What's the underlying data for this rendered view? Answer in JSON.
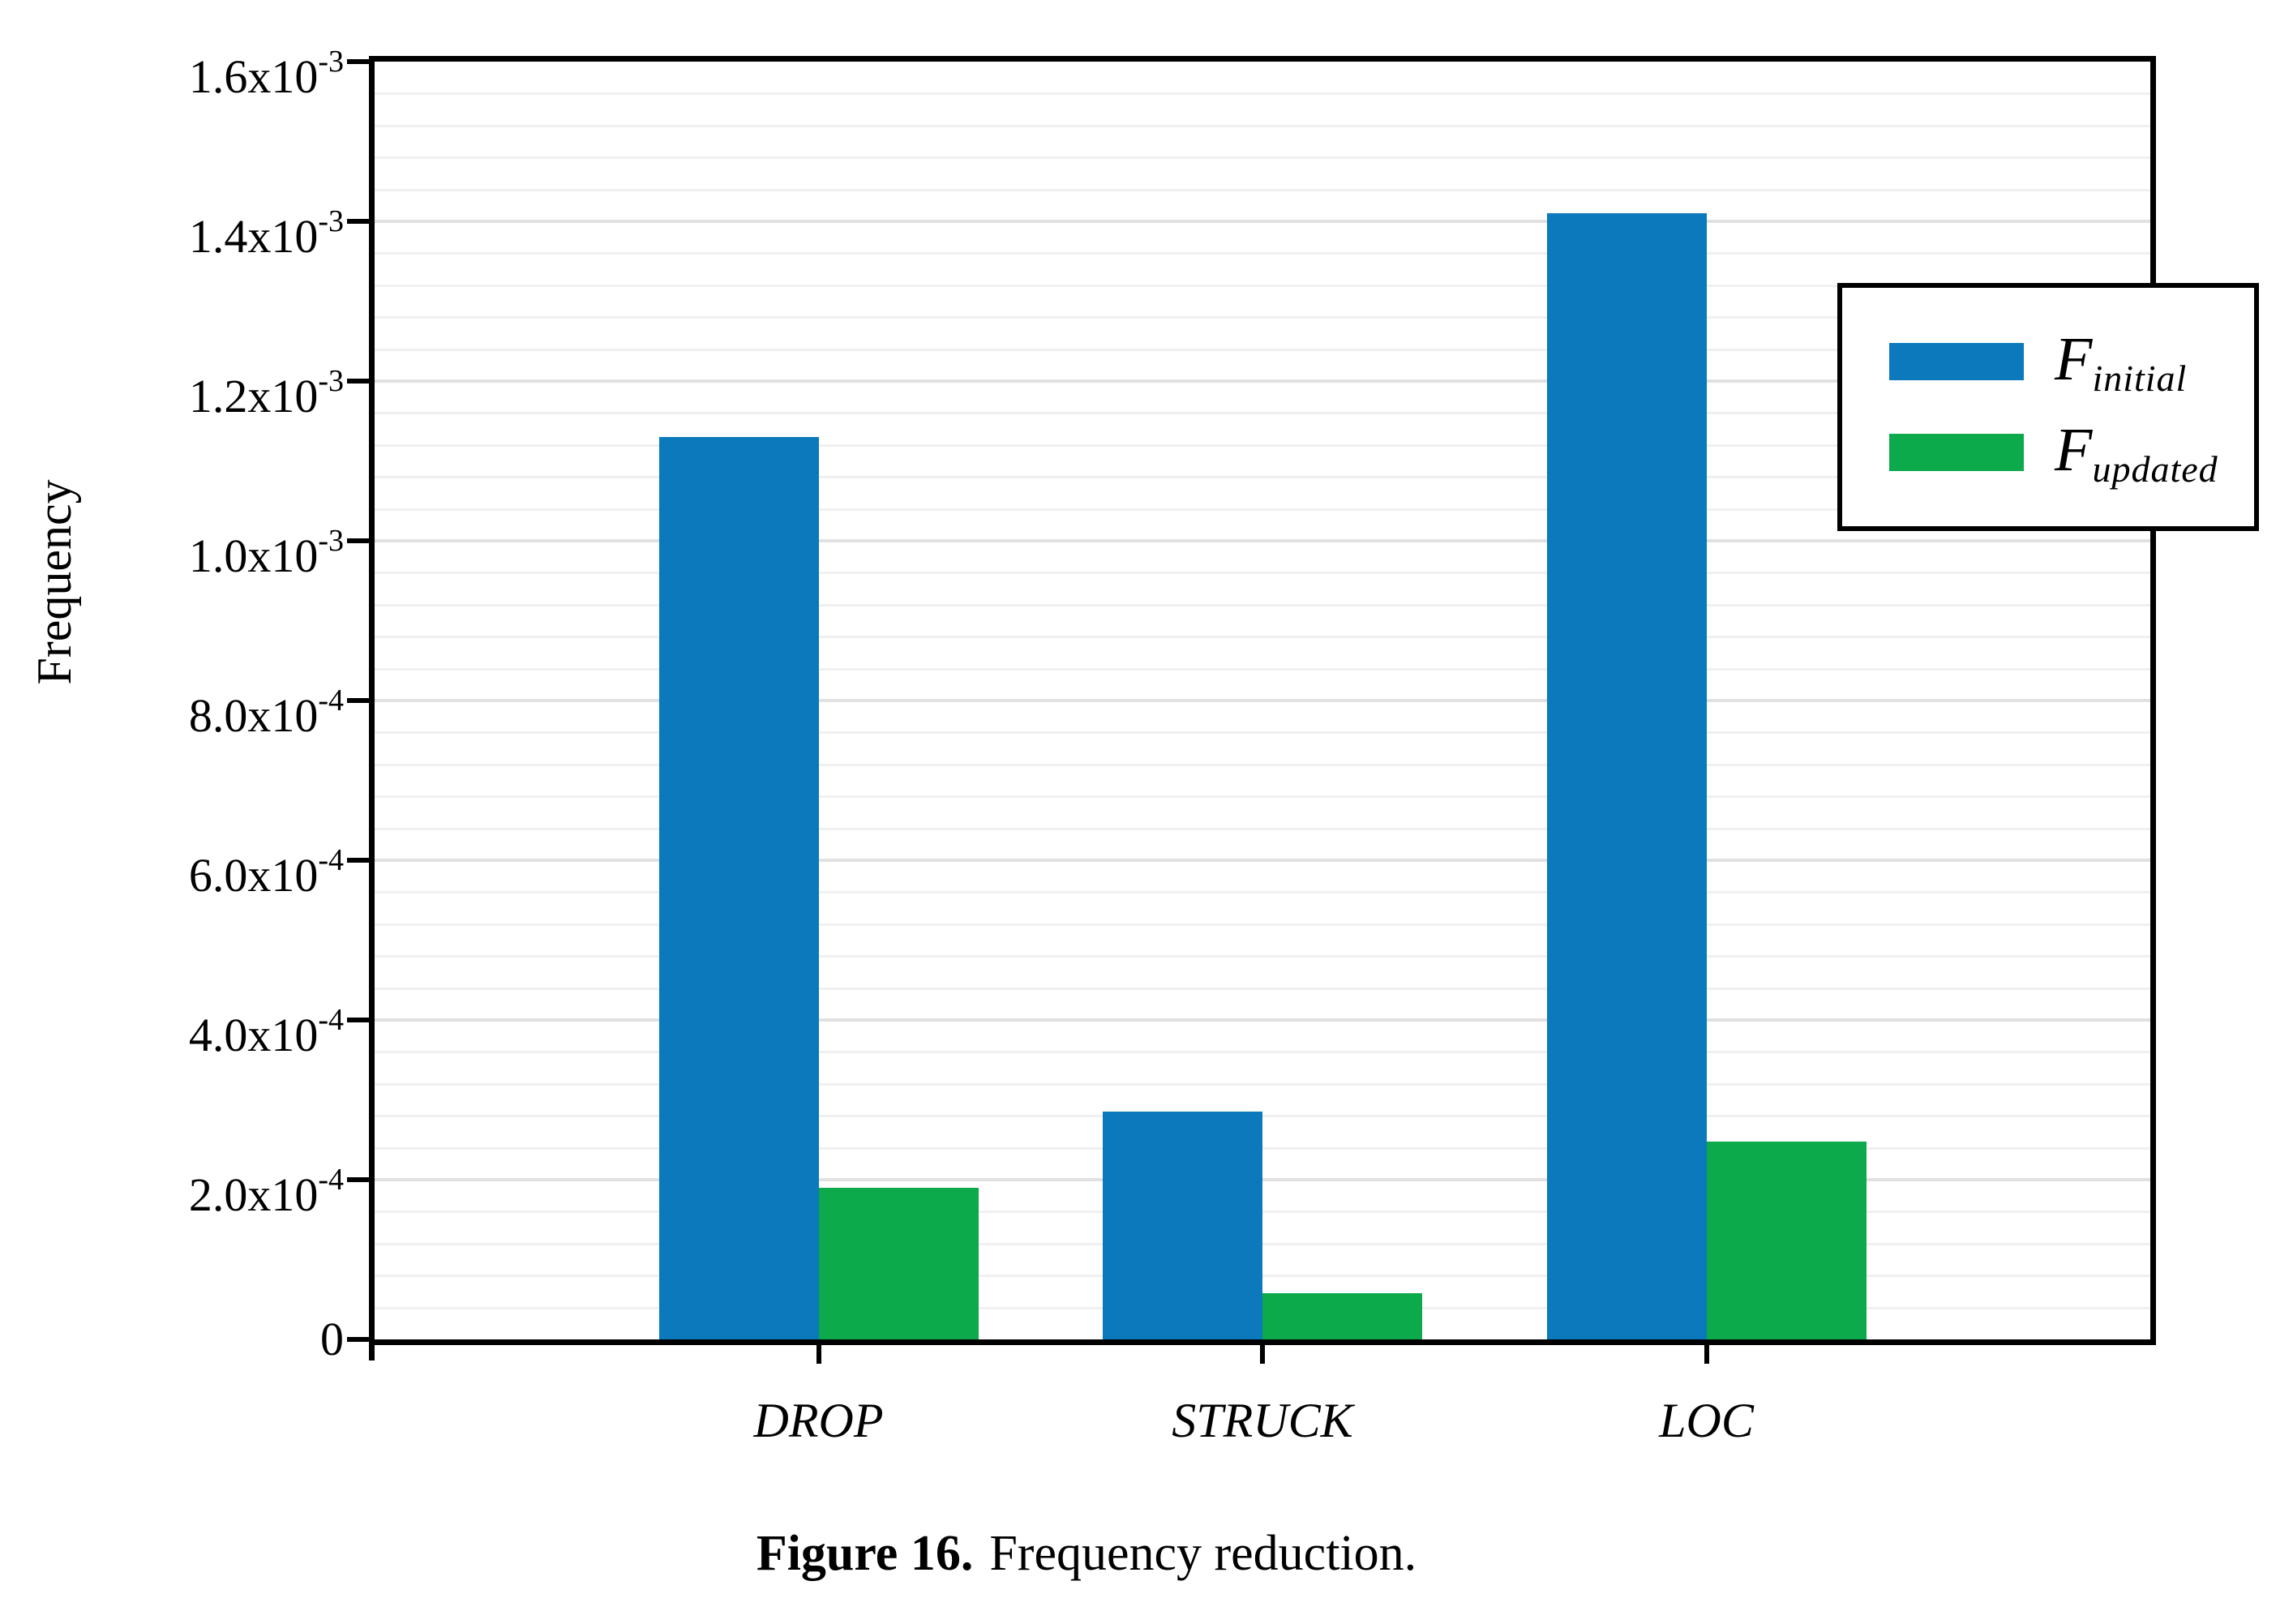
{
  "figure": {
    "caption_bold": "Figure 16.",
    "caption_rest": "Frequency reduction."
  },
  "chart_data": {
    "type": "bar",
    "title": "",
    "xlabel": "",
    "ylabel": "Frequency",
    "categories": [
      "DROP",
      "STRUCK",
      "LOC"
    ],
    "series": [
      {
        "name": "F_initial",
        "label_main": "F",
        "label_sub": "initial",
        "color": "#0b79bb",
        "values": [
          0.00113,
          0.000285,
          0.00141
        ]
      },
      {
        "name": "F_updated",
        "label_main": "F",
        "label_sub": "updated",
        "color": "#0caa4a",
        "values": [
          0.00019,
          5.8e-05,
          0.000248
        ]
      }
    ],
    "ylim": [
      0,
      0.0016
    ],
    "y_major_step": 0.0002,
    "y_minor_step": 4e-05,
    "y_ticks": [
      {
        "value": 0,
        "base": "0",
        "sup": ""
      },
      {
        "value": 0.0002,
        "base": "2.0x10",
        "sup": "-4"
      },
      {
        "value": 0.0004,
        "base": "4.0x10",
        "sup": "-4"
      },
      {
        "value": 0.0006,
        "base": "6.0x10",
        "sup": "-4"
      },
      {
        "value": 0.0008,
        "base": "8.0x10",
        "sup": "-4"
      },
      {
        "value": 0.001,
        "base": "1.0x10",
        "sup": "-3"
      },
      {
        "value": 0.0012,
        "base": "1.2x10",
        "sup": "-3"
      },
      {
        "value": 0.0014,
        "base": "1.4x10",
        "sup": "-3"
      },
      {
        "value": 0.0016,
        "base": "1.6x10",
        "sup": "-3"
      }
    ],
    "grid": "horizontal-minor-and-major",
    "legend_position": "top-right"
  },
  "colors": {
    "bar_initial": "#0b79bb",
    "bar_updated": "#0caa4a",
    "grid_minor": "#f0f0f0",
    "grid_major": "#e1e1e1",
    "axis": "#000000",
    "background": "#ffffff"
  }
}
